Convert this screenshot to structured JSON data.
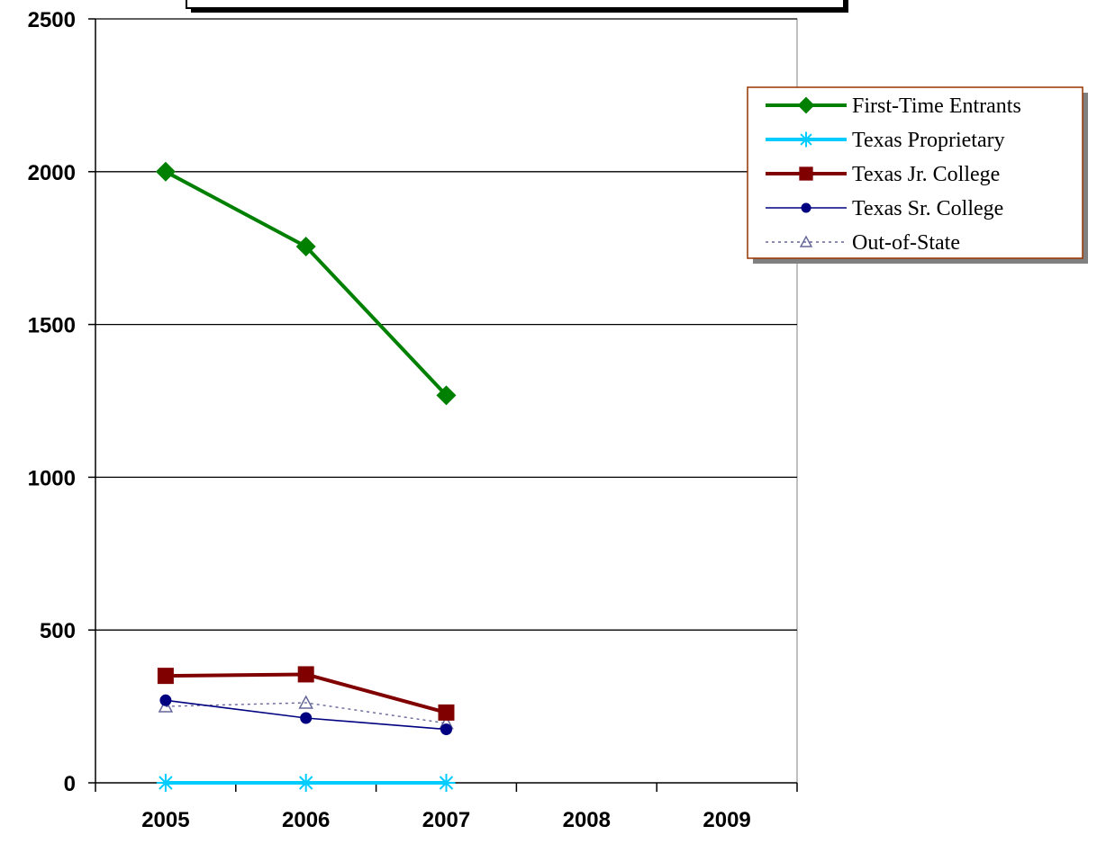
{
  "chart_data": {
    "type": "line",
    "categories": [
      "2005",
      "2006",
      "2007",
      "2008",
      "2009"
    ],
    "y_ticks": [
      "0",
      "500",
      "1000",
      "1500",
      "2000",
      "2500"
    ],
    "ylim": [
      0,
      2500
    ],
    "grid": "horizontal major gridlines",
    "legend_position": "right",
    "series": [
      {
        "name": "First-Time Entrants",
        "values": [
          2000,
          1755,
          1268,
          null,
          null
        ],
        "color": "#008000",
        "marker": "diamond",
        "line": "solid-thick"
      },
      {
        "name": "Texas Proprietary",
        "values": [
          0,
          0,
          0,
          null,
          null
        ],
        "color": "#00CCFF",
        "marker": "asterisk",
        "line": "solid-thick"
      },
      {
        "name": "Texas Jr. College",
        "values": [
          350,
          355,
          230,
          null,
          null
        ],
        "color": "#800000",
        "marker": "square",
        "line": "solid-thick"
      },
      {
        "name": "Texas Sr. College",
        "values": [
          270,
          212,
          175,
          null,
          null
        ],
        "color": "#000080",
        "marker": "circle",
        "line": "solid-thin"
      },
      {
        "name": "Out-of-State",
        "values": [
          250,
          262,
          195,
          null,
          null
        ],
        "color": "#666699",
        "marker": "triangle-open",
        "line": "dotted"
      }
    ]
  }
}
